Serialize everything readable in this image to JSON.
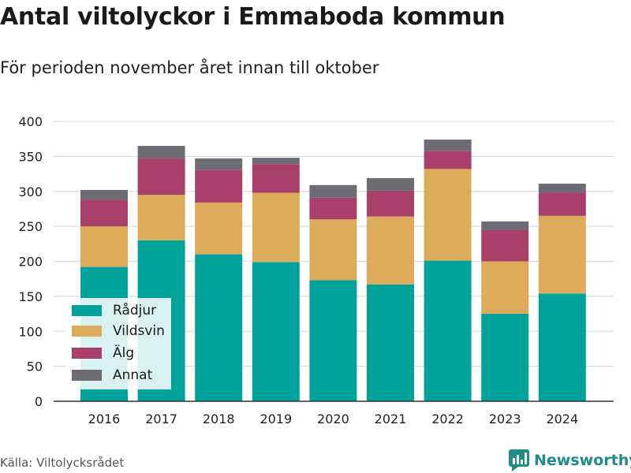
{
  "title": "Antal viltolyckor i Emmaboda kommun",
  "subtitle": "För perioden november året innan till oktober",
  "source": "Källa: Viltolycksrådet",
  "brand": "Newsworthy",
  "chart_data": {
    "type": "bar",
    "stacked": true,
    "categories": [
      "2016",
      "2017",
      "2018",
      "2019",
      "2020",
      "2021",
      "2022",
      "2023",
      "2024"
    ],
    "series": [
      {
        "name": "Rådjur",
        "color": "#00a399",
        "values": [
          192,
          230,
          210,
          199,
          173,
          167,
          201,
          125,
          154
        ]
      },
      {
        "name": "Vildsvin",
        "color": "#dcac5b",
        "values": [
          58,
          65,
          74,
          99,
          87,
          97,
          131,
          75,
          111
        ]
      },
      {
        "name": "Älg",
        "color": "#a94069",
        "values": [
          38,
          52,
          47,
          41,
          31,
          37,
          26,
          45,
          33
        ]
      },
      {
        "name": "Annat",
        "color": "#6e6b73",
        "values": [
          14,
          18,
          16,
          9,
          18,
          18,
          16,
          12,
          13
        ]
      }
    ],
    "ylim": [
      0,
      400
    ],
    "yticks": [
      0,
      50,
      100,
      150,
      200,
      250,
      300,
      350,
      400
    ],
    "grid": true,
    "legend_position": "bottom-left"
  }
}
